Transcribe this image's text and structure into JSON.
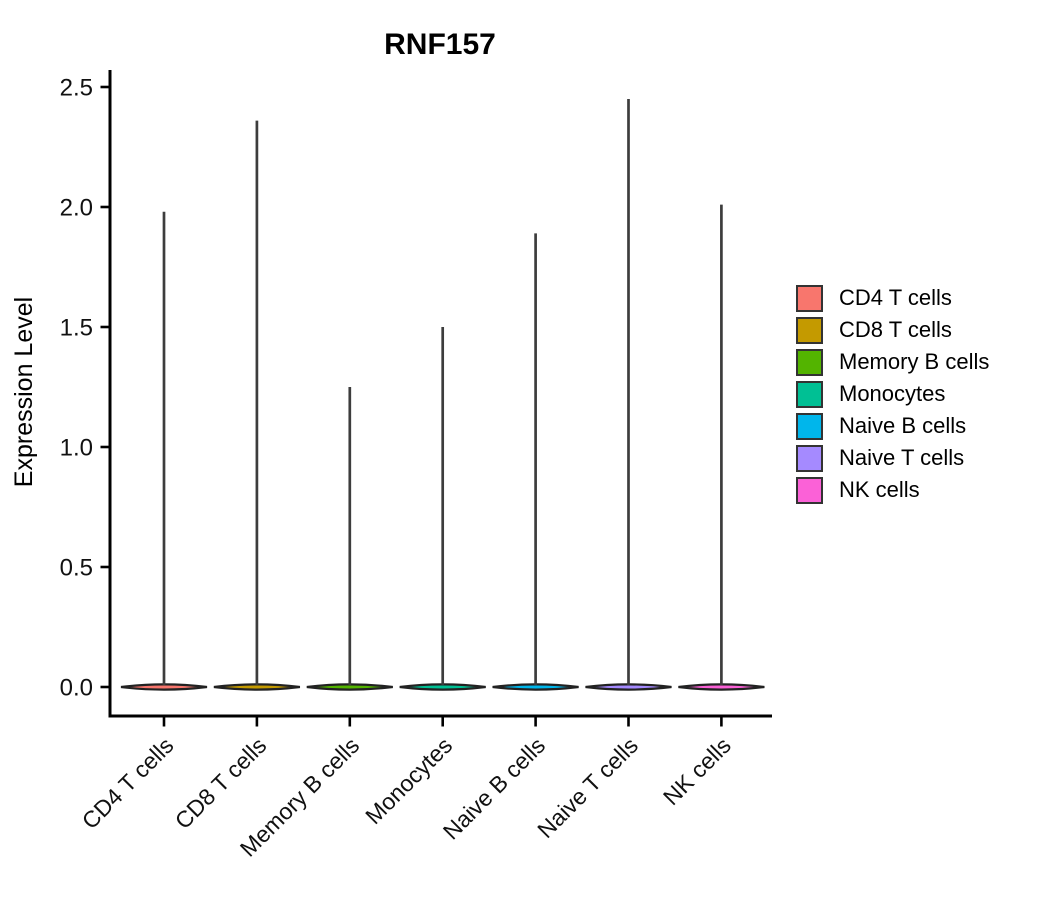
{
  "title": "RNF157",
  "chart_data": {
    "type": "violin",
    "title": "RNF157",
    "xlabel": "",
    "ylabel": "Expression Level",
    "ylim": [
      0,
      2.6
    ],
    "y_tick_values": [
      0,
      0.5,
      1.0,
      1.5,
      2.0,
      2.5
    ],
    "y_tick_labels": [
      "0.0",
      "0.5",
      "1.0",
      "1.5",
      "2.0",
      "2.5"
    ],
    "categories": [
      "CD4 T cells",
      "CD8 T cells",
      "Memory B cells",
      "Monocytes",
      "Naive B cells",
      "Naive T cells",
      "NK cells"
    ],
    "series": [
      {
        "name": "CD4 T cells",
        "color": "#F8766D",
        "max_expression": 1.98,
        "bulk_value": 0.0
      },
      {
        "name": "CD8 T cells",
        "color": "#C49A00",
        "max_expression": 2.36,
        "bulk_value": 0.0
      },
      {
        "name": "Memory B cells",
        "color": "#53B400",
        "max_expression": 1.25,
        "bulk_value": 0.0
      },
      {
        "name": "Monocytes",
        "color": "#00C094",
        "max_expression": 1.5,
        "bulk_value": 0.0
      },
      {
        "name": "Naive B cells",
        "color": "#00B6EB",
        "max_expression": 1.89,
        "bulk_value": 0.0
      },
      {
        "name": "Naive T cells",
        "color": "#A58AFF",
        "max_expression": 2.45,
        "bulk_value": 0.0
      },
      {
        "name": "NK cells",
        "color": "#FB61D7",
        "max_expression": 2.01,
        "bulk_value": 0.0
      }
    ],
    "shape_note": "Each violin is a flat mass at 0 with a thin vertical spike rising to max_expression",
    "grid": false,
    "legend_position": "right",
    "x_tick_rotation_deg": 45
  },
  "style": {
    "axis_color": "#000000",
    "spike_color": "#3d3d3d",
    "violin_outline_color": "#222222",
    "legend_swatch_border": "#333333"
  }
}
